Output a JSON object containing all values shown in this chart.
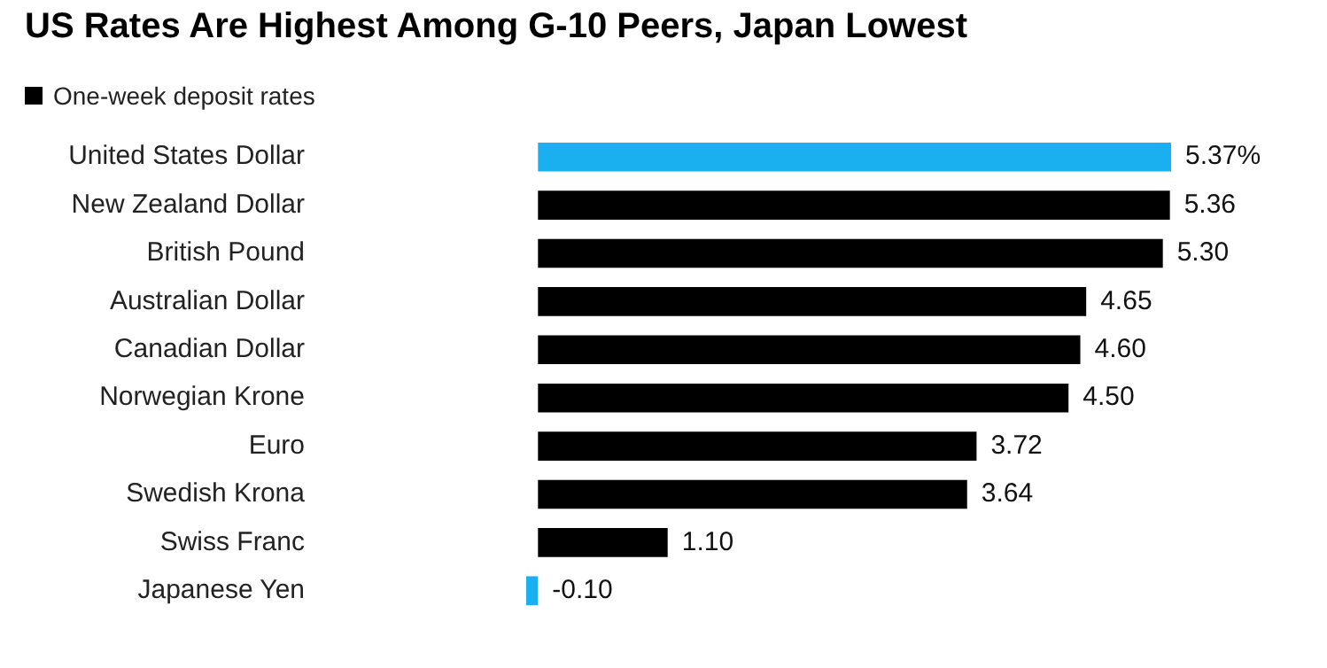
{
  "chart_data": {
    "type": "bar",
    "orientation": "horizontal",
    "title": "US Rates Are Highest Among G-10 Peers, Japan Lowest",
    "categories": [
      "United States Dollar",
      "New Zealand Dollar",
      "British Pound",
      "Australian Dollar",
      "Canadian Dollar",
      "Norwegian Krone",
      "Euro",
      "Swedish Krona",
      "Swiss Franc",
      "Japanese Yen"
    ],
    "series": [
      {
        "name": "One-week deposit rates",
        "color": "#000000",
        "colors": [
          "#1ab0f0",
          "#000000",
          "#000000",
          "#000000",
          "#000000",
          "#000000",
          "#000000",
          "#000000",
          "#000000",
          "#1ab0f0"
        ],
        "values": [
          5.37,
          5.36,
          5.3,
          4.65,
          4.6,
          4.5,
          3.72,
          3.64,
          1.1,
          -0.1
        ],
        "value_labels": [
          "5.37%",
          "5.36",
          "5.30",
          "4.65",
          "4.60",
          "4.50",
          "3.72",
          "3.64",
          "1.10",
          "-0.10"
        ]
      }
    ],
    "legend": "top left"
  }
}
